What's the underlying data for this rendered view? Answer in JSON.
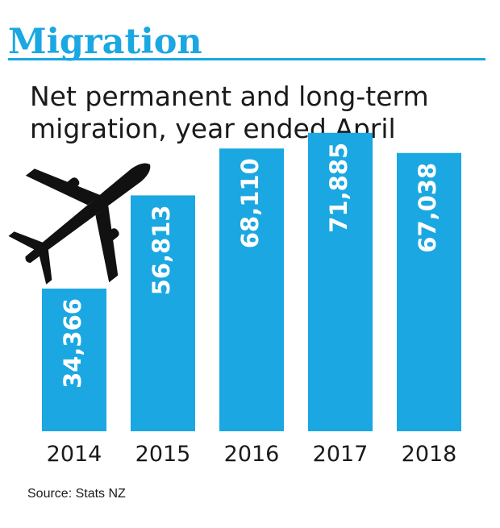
{
  "header": {
    "title": "Migration"
  },
  "chart_data": {
    "type": "bar",
    "title": "Net permanent and long-term migration, year ended April",
    "categories": [
      "2014",
      "2015",
      "2016",
      "2017",
      "2018"
    ],
    "values": [
      34366,
      56813,
      68110,
      71885,
      67038
    ],
    "value_labels": [
      "34,366",
      "56,813",
      "68,110",
      "71,885",
      "67,038"
    ],
    "ylim": [
      0,
      80000
    ],
    "grid": false,
    "bar_color": "#1aa7e2",
    "value_label_color": "#ffffff",
    "decoration_icon": "airplane-icon"
  },
  "footer": {
    "source": "Source: Stats NZ"
  }
}
